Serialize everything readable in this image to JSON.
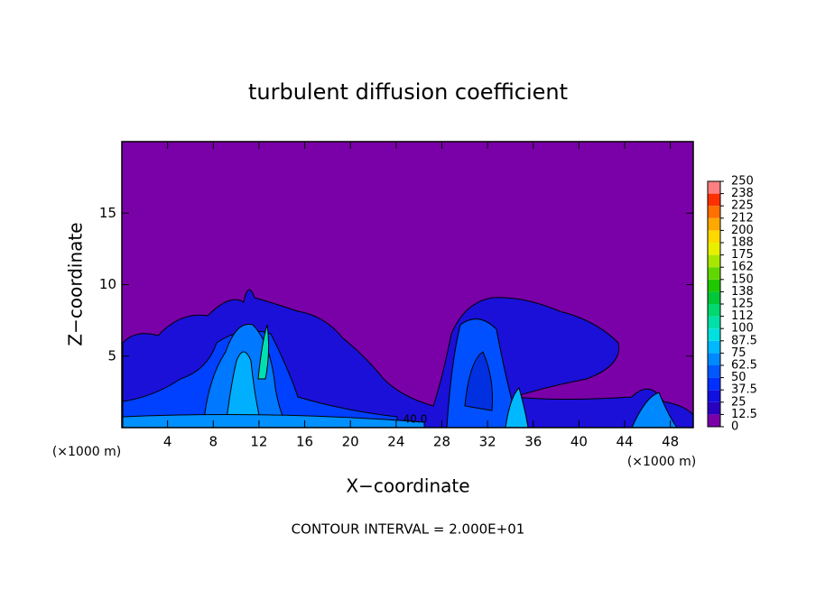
{
  "chart_data": {
    "type": "contour",
    "title": "turbulent diffusion coefficient",
    "xlabel": "X−coordinate",
    "ylabel": "Z−coordinate",
    "unit_label": "(×1000 m)",
    "annotation": "CONTOUR INTERVAL = 2.000E+01",
    "contour_labels": [
      {
        "value": 40,
        "label": "40.0"
      }
    ],
    "xlim": [
      0,
      50
    ],
    "ylim": [
      0,
      20
    ],
    "xticks": [
      4,
      8,
      12,
      16,
      20,
      24,
      28,
      32,
      36,
      40,
      44,
      48
    ],
    "yticks": [
      5,
      10,
      15
    ],
    "background_color": "#7a00a8",
    "colorbar": {
      "ticks": [
        0,
        12.5,
        25,
        37.5,
        50,
        62.5,
        75,
        87.5,
        100,
        112,
        125,
        138,
        150,
        162,
        175,
        188,
        200,
        212,
        225,
        238,
        250
      ],
      "colors": [
        "#7a00a8",
        "#2a00c0",
        "#1010e0",
        "#0030ff",
        "#0058ff",
        "#0088ff",
        "#00b8ff",
        "#00e0e0",
        "#00e0a8",
        "#00d870",
        "#00c838",
        "#20c800",
        "#60d800",
        "#a8e800",
        "#e8f000",
        "#ffd800",
        "#ffa800",
        "#ff7000",
        "#ff3000",
        "#ff8080"
      ]
    }
  }
}
